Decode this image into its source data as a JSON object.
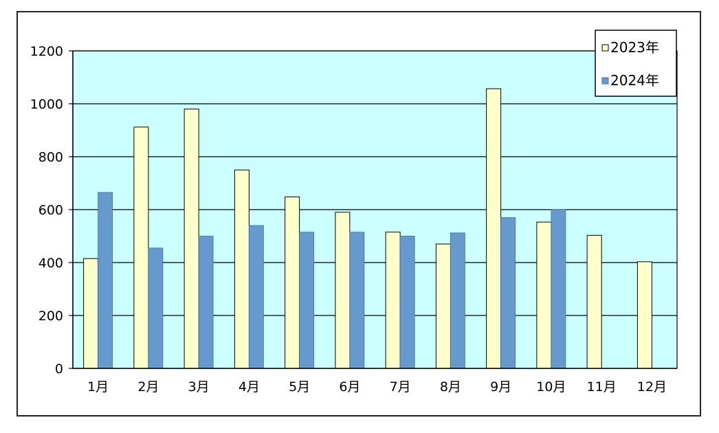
{
  "chart_data": {
    "type": "bar",
    "title": "",
    "xlabel": "",
    "ylabel": "",
    "categories": [
      "1月",
      "2月",
      "3月",
      "4月",
      "5月",
      "6月",
      "7月",
      "8月",
      "9月",
      "10月",
      "11月",
      "12月"
    ],
    "series": [
      {
        "name": "2023年",
        "color": "#ffffcc",
        "values": [
          415,
          912,
          980,
          750,
          648,
          590,
          515,
          470,
          1057,
          553,
          503,
          403
        ]
      },
      {
        "name": "2024年",
        "color": "#6699cc",
        "values": [
          665,
          455,
          500,
          540,
          515,
          515,
          500,
          512,
          570,
          600,
          null,
          null
        ]
      }
    ],
    "ylim": [
      0,
      1200
    ],
    "yticks": [
      0,
      200,
      400,
      600,
      800,
      1000,
      1200
    ],
    "grid": true,
    "plot_background": "#ccffff",
    "legend_position": "top-right"
  }
}
